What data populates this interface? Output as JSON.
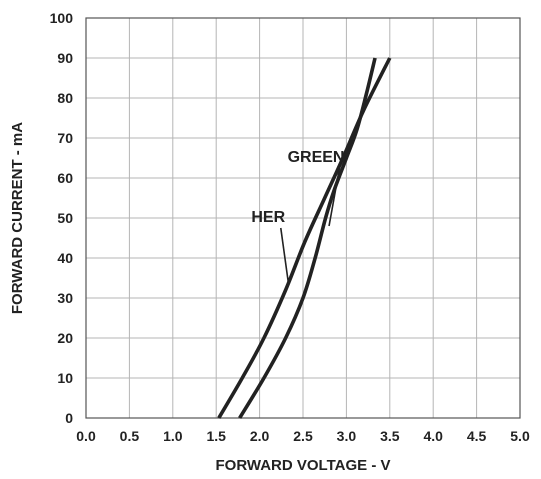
{
  "chart_data": {
    "type": "line",
    "xlabel": "FORWARD VOLTAGE - V",
    "ylabel": "FORWARD CURRENT - mA",
    "xlim": [
      0,
      5
    ],
    "ylim": [
      0,
      100
    ],
    "xticks": [
      "0.0",
      "0.5",
      "1.0",
      "1.5",
      "2.0",
      "2.5",
      "3.0",
      "3.5",
      "4.0",
      "4.5",
      "5.0"
    ],
    "yticks": [
      "0",
      "10",
      "20",
      "30",
      "40",
      "50",
      "60",
      "70",
      "80",
      "90",
      "100"
    ],
    "grid": true,
    "series": [
      {
        "name": "HER",
        "x": [
          1.53,
          1.8,
          2.05,
          2.3,
          2.52,
          2.75,
          2.96,
          3.2,
          3.5
        ],
        "y": [
          0,
          10,
          20,
          32,
          44,
          55,
          65,
          77,
          90
        ]
      },
      {
        "name": "GREEN",
        "x": [
          1.77,
          2.05,
          2.3,
          2.5,
          2.64,
          2.76,
          2.86,
          3.0,
          3.12,
          3.23,
          3.33
        ],
        "y": [
          0,
          10,
          20,
          30,
          40,
          50,
          57,
          65,
          72,
          81,
          90
        ]
      }
    ],
    "annotations": [
      {
        "label": "GREEN",
        "text_x": 2.65,
        "text_y": 64,
        "point_x": 2.8,
        "point_y": 48
      },
      {
        "label": "HER",
        "text_x": 2.1,
        "text_y": 49,
        "point_x": 2.33,
        "point_y": 34
      }
    ]
  }
}
